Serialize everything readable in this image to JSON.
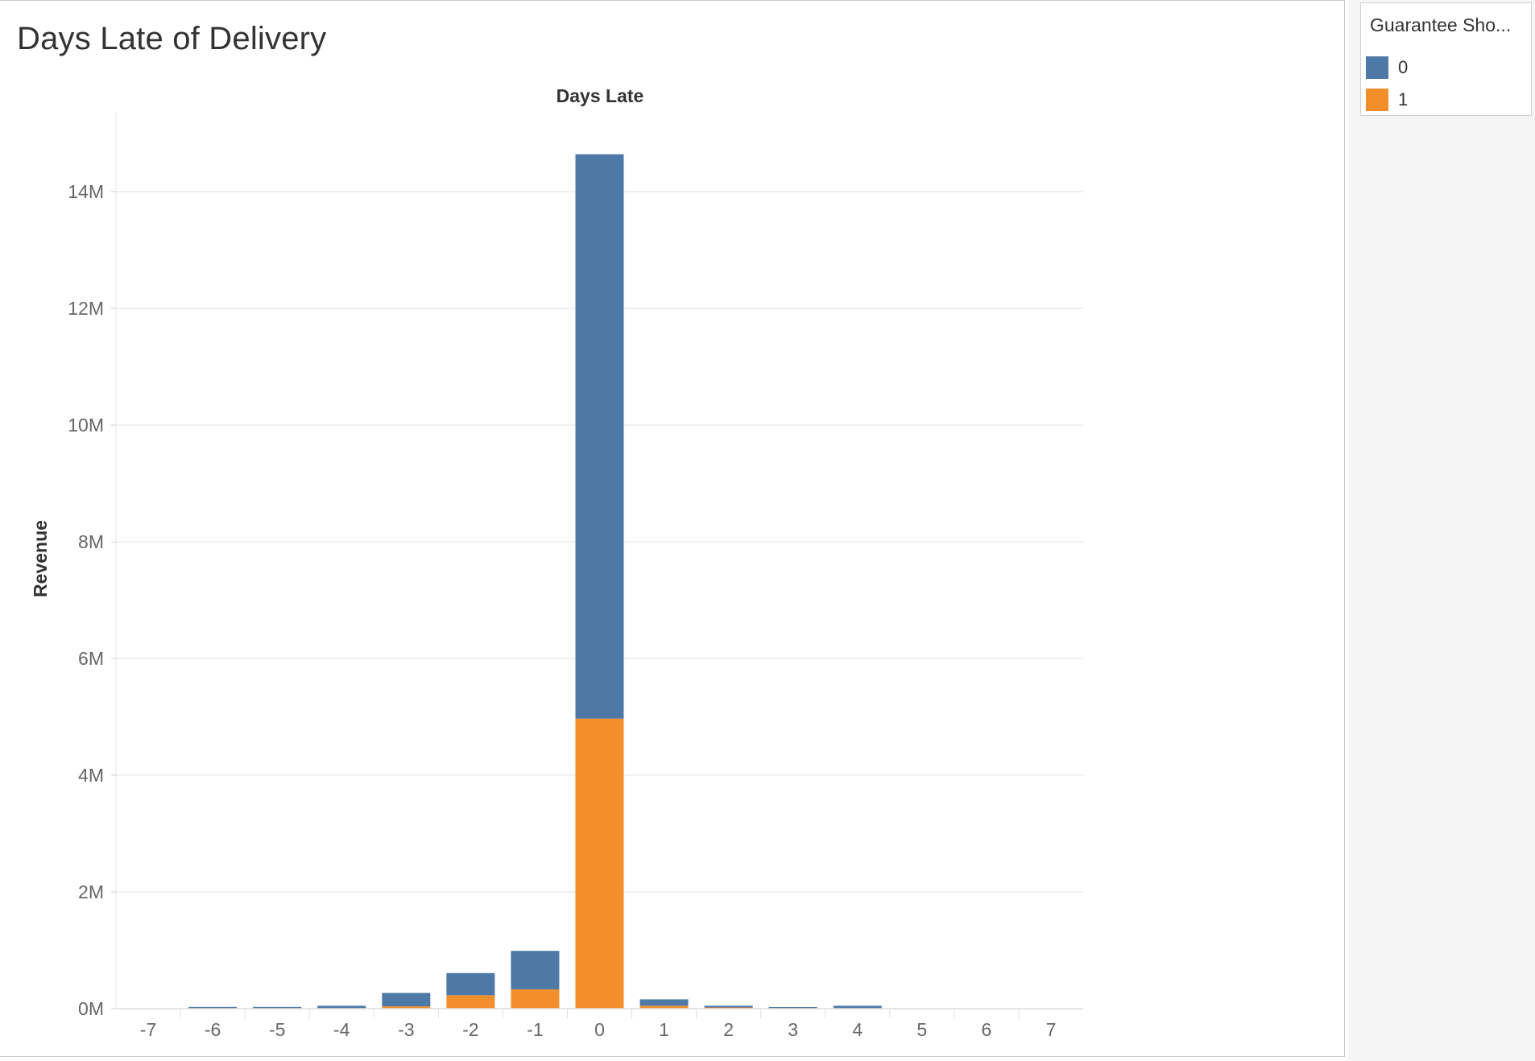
{
  "sheet": {
    "title": "Days Late of Delivery"
  },
  "legend": {
    "title": "Guarantee Sho...",
    "items": [
      {
        "label": "0",
        "color": "#4e79a7"
      },
      {
        "label": "1",
        "color": "#f28e2b"
      }
    ]
  },
  "chart_data": {
    "type": "bar",
    "stacked": true,
    "title": "",
    "xlabel": "Days Late",
    "ylabel": "Revenue",
    "ylim": [
      0,
      15000000
    ],
    "yticks": [
      0,
      2000000,
      4000000,
      6000000,
      8000000,
      10000000,
      12000000,
      14000000
    ],
    "ytick_labels": [
      "0M",
      "2M",
      "4M",
      "6M",
      "8M",
      "10M",
      "12M",
      "14M"
    ],
    "categories": [
      "-7",
      "-6",
      "-5",
      "-4",
      "-3",
      "-2",
      "-1",
      "0",
      "1",
      "2",
      "3",
      "4",
      "5",
      "6",
      "7"
    ],
    "series": [
      {
        "name": "1",
        "color": "#f28e2b",
        "values": [
          0,
          0,
          0,
          0,
          40000,
          230000,
          330000,
          4970000,
          50000,
          20000,
          0,
          0,
          0,
          0,
          0
        ]
      },
      {
        "name": "0",
        "color": "#4e79a7",
        "values": [
          0,
          30000,
          30000,
          50000,
          230000,
          380000,
          660000,
          9670000,
          110000,
          30000,
          20000,
          50000,
          0,
          0,
          0
        ]
      }
    ],
    "grid": true,
    "legend_position": "top-right"
  }
}
